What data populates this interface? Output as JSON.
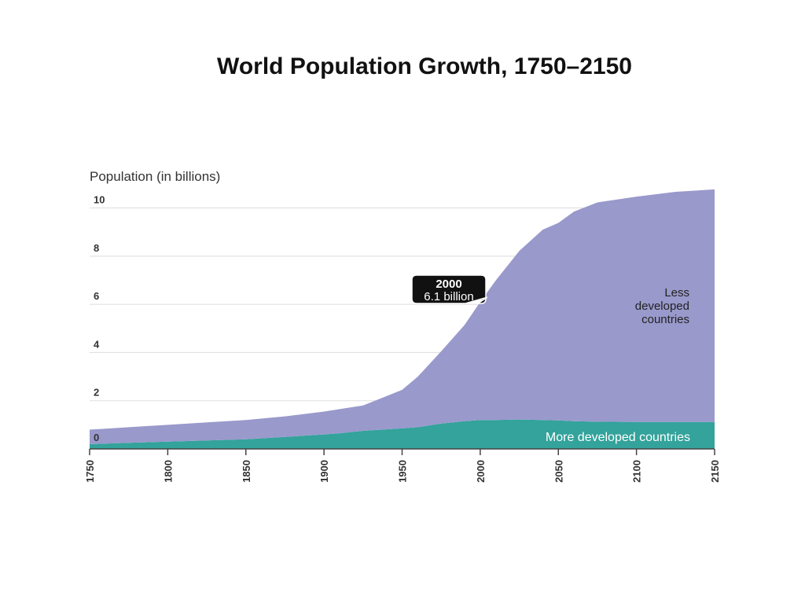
{
  "slide": {
    "title": "World Population Growth, 1750–2150"
  },
  "chart_data": {
    "type": "area",
    "title": "World Population Growth, 1750–2150",
    "ylabel": "Population (in billions)",
    "xlabel": "",
    "x": [
      1750,
      1775,
      1800,
      1825,
      1850,
      1875,
      1900,
      1910,
      1925,
      1950,
      1960,
      1975,
      1990,
      2000,
      2010,
      2025,
      2040,
      2050,
      2060,
      2075,
      2100,
      2125,
      2150
    ],
    "series": [
      {
        "name": "More developed countries",
        "values": [
          0.2,
          0.25,
          0.3,
          0.35,
          0.4,
          0.5,
          0.6,
          0.65,
          0.75,
          0.85,
          0.9,
          1.05,
          1.15,
          1.2,
          1.2,
          1.22,
          1.2,
          1.18,
          1.15,
          1.13,
          1.12,
          1.12,
          1.12
        ],
        "color": "#33a39b"
      },
      {
        "name": "Less developed countries",
        "values": [
          0.6,
          0.65,
          0.7,
          0.75,
          0.8,
          0.85,
          0.95,
          1.0,
          1.05,
          1.6,
          2.1,
          3.0,
          4.0,
          4.9,
          5.8,
          7.0,
          7.9,
          8.2,
          8.7,
          9.1,
          9.35,
          9.55,
          9.65
        ],
        "color": "#9999cc"
      }
    ],
    "stacked": true,
    "xticks": [
      1750,
      1800,
      1850,
      1900,
      1950,
      2000,
      2050,
      2100,
      2150
    ],
    "yticks": [
      0,
      2,
      4,
      6,
      8,
      10
    ],
    "ylim": [
      0,
      10.8
    ],
    "xlim": [
      1750,
      2150
    ],
    "grid": "horizontal",
    "annotations": [
      {
        "label": "2000",
        "sublabel": "6.1 billion",
        "x": 2000,
        "y": 6.1
      }
    ],
    "series_labels": {
      "less": [
        "Less",
        "developed",
        "countries"
      ],
      "more": "More developed countries"
    },
    "colors": {
      "grid": "#dddddd",
      "axis": "#444444",
      "text": "#333333",
      "callout_bg": "#111111",
      "callout_text": "#ffffff",
      "series_label_light": "#ffffff",
      "series_label_dark": "#222222"
    }
  }
}
